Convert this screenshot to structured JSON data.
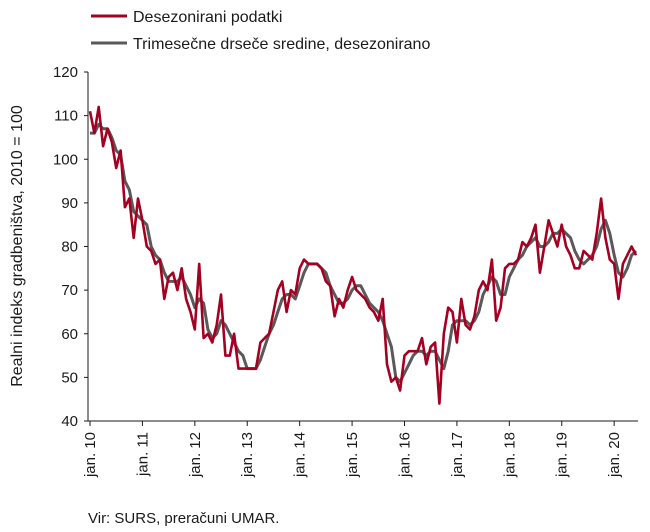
{
  "chart_data": {
    "type": "line",
    "ylabel": "Realni indeks gradbeništva, 2010 = 100",
    "ylim": [
      40,
      120
    ],
    "yticks": [
      40,
      50,
      60,
      70,
      80,
      90,
      100,
      110,
      120
    ],
    "xticks": [
      "jan. 10",
      "jan. 11",
      "jan. 12",
      "jan. 13",
      "jan. 14",
      "jan. 15",
      "jan. 16",
      "jan. 17",
      "jan. 18",
      "jan. 19",
      "jan. 20"
    ],
    "x_start": "2010-01",
    "x_end": "2020-11",
    "grid": false,
    "legend_position": "top-left",
    "source": "Vir: SURS, preračuni UMAR.",
    "series": [
      {
        "name": "Desezonirani podatki",
        "color": "#a50021",
        "values": [
          111,
          106,
          112,
          103,
          107,
          104,
          98,
          102,
          89,
          91,
          82,
          91,
          86,
          80,
          79,
          76,
          77,
          68,
          73,
          74,
          70,
          75,
          68,
          65,
          61,
          76,
          59,
          60,
          58,
          62,
          69,
          55,
          55,
          60,
          52,
          52,
          52,
          52,
          52,
          58,
          59,
          60,
          65,
          70,
          72,
          65,
          70,
          69,
          75,
          77,
          76,
          76,
          76,
          75,
          72,
          71,
          64,
          68,
          66,
          70,
          73,
          70,
          69,
          68,
          66,
          65,
          63,
          68,
          53,
          49,
          50,
          47,
          55,
          56,
          56,
          56,
          59,
          53,
          57,
          58,
          44,
          60,
          66,
          65,
          58,
          68,
          62,
          61,
          64,
          70,
          72,
          70,
          77,
          63,
          66,
          75,
          76,
          76,
          77,
          81,
          80,
          82,
          85,
          74,
          80,
          86,
          83,
          80,
          85,
          80,
          78,
          75,
          75,
          79,
          78,
          77,
          83,
          91,
          82,
          77,
          76,
          68,
          76,
          78,
          80,
          78
        ]
      },
      {
        "name": "Trimesečne drseče sredine, desezonirano",
        "color": "#595959",
        "values": [
          106,
          106,
          108,
          107,
          107,
          105,
          102,
          101,
          95,
          93,
          88,
          87,
          86,
          85,
          80,
          78,
          77,
          74,
          72,
          72,
          72,
          73,
          71,
          69,
          66,
          68,
          67,
          61,
          59,
          60,
          63,
          62,
          60,
          58,
          56,
          55,
          52,
          52,
          52,
          54,
          57,
          60,
          62,
          65,
          68,
          69,
          69,
          68,
          71,
          74,
          76,
          76,
          76,
          75,
          74,
          71,
          69,
          67,
          67,
          68,
          70,
          71,
          71,
          69,
          67,
          66,
          65,
          63,
          60,
          57,
          50,
          49,
          51,
          53,
          55,
          56,
          56,
          55,
          56,
          56,
          54,
          52,
          56,
          62,
          63,
          63,
          63,
          62,
          63,
          65,
          69,
          71,
          73,
          72,
          69,
          69,
          73,
          75,
          77,
          78,
          80,
          81,
          82,
          80,
          80,
          81,
          83,
          83,
          84,
          83,
          82,
          79,
          77,
          76,
          77,
          78,
          80,
          84,
          86,
          83,
          78,
          74,
          73,
          75,
          78,
          79
        ]
      }
    ]
  }
}
